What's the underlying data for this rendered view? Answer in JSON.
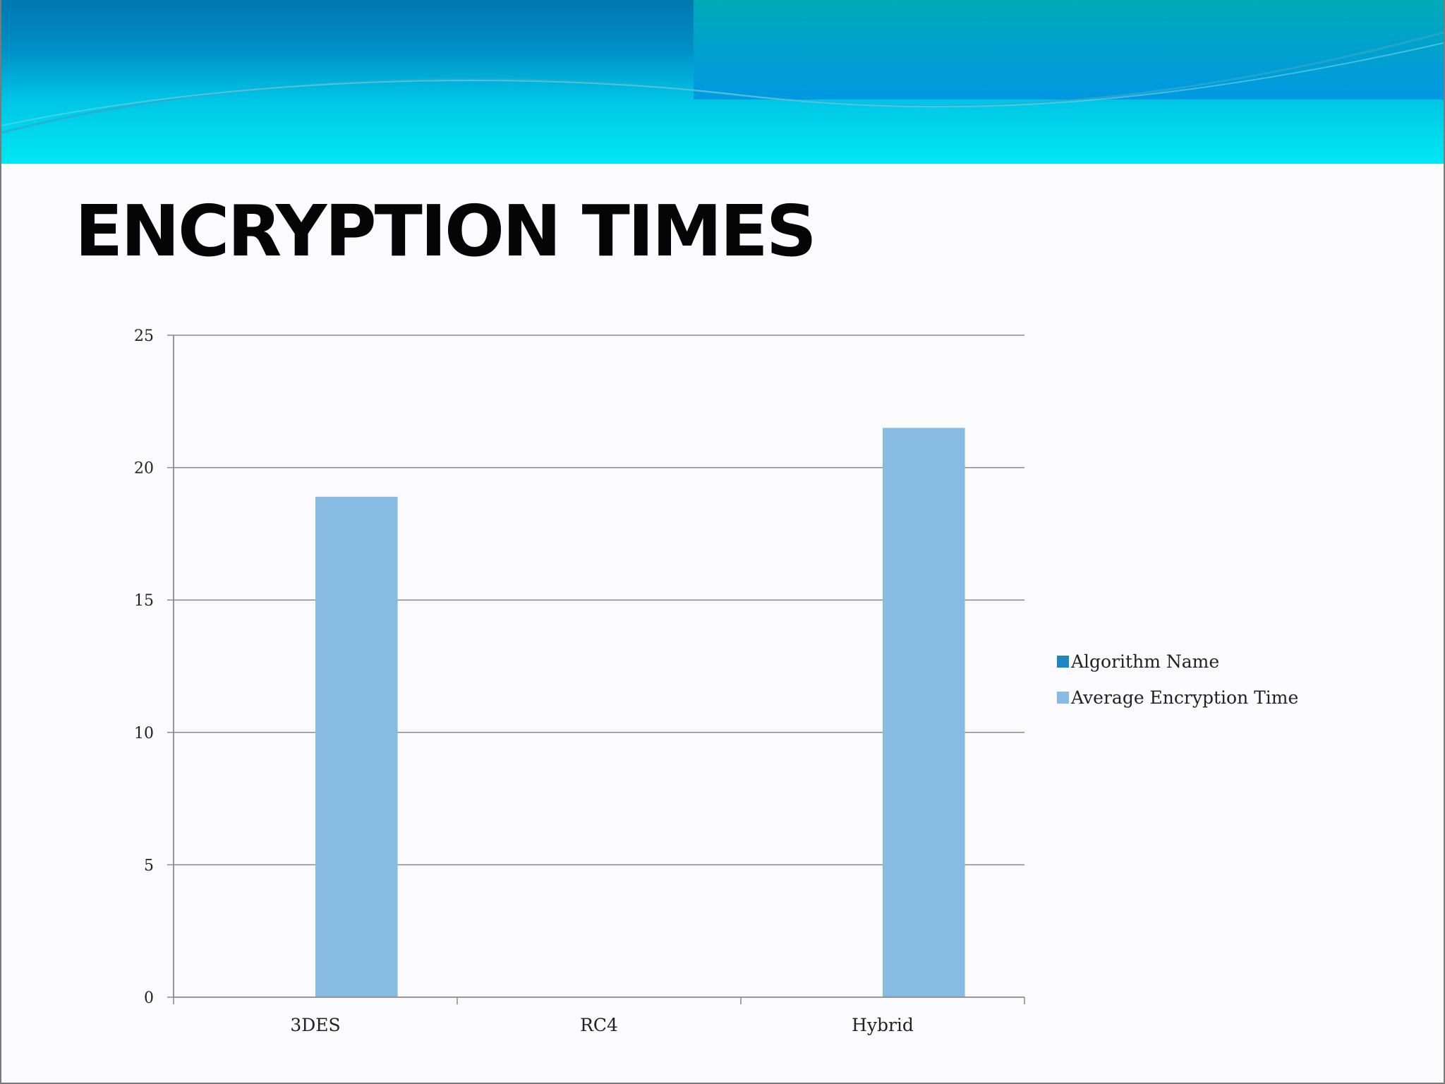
{
  "slide": {
    "title": "ENCRYPTION TIMES"
  },
  "colors": {
    "header_dark": "#0077b0",
    "header_light": "#00e4f0",
    "header_panel_top": "#00aab8",
    "header_panel_bottom": "#0096e0",
    "series_algorithm_name": "#1f86c2",
    "series_average_time": "#88bbe1",
    "gridline": "#8a8a8a"
  },
  "chart_data": {
    "type": "bar",
    "title": "",
    "xlabel": "",
    "ylabel": "",
    "categories": [
      "3DES",
      "RC4",
      "Hybrid"
    ],
    "series": [
      {
        "name": "Algorithm Name",
        "values": [
          null,
          null,
          null
        ]
      },
      {
        "name": "Average Encryption Time",
        "values": [
          18.9,
          null,
          21.5
        ]
      }
    ],
    "ylim": [
      0,
      25
    ],
    "yticks": [
      0,
      5,
      10,
      15,
      20,
      25
    ],
    "grid": true,
    "legend_position": "right"
  }
}
